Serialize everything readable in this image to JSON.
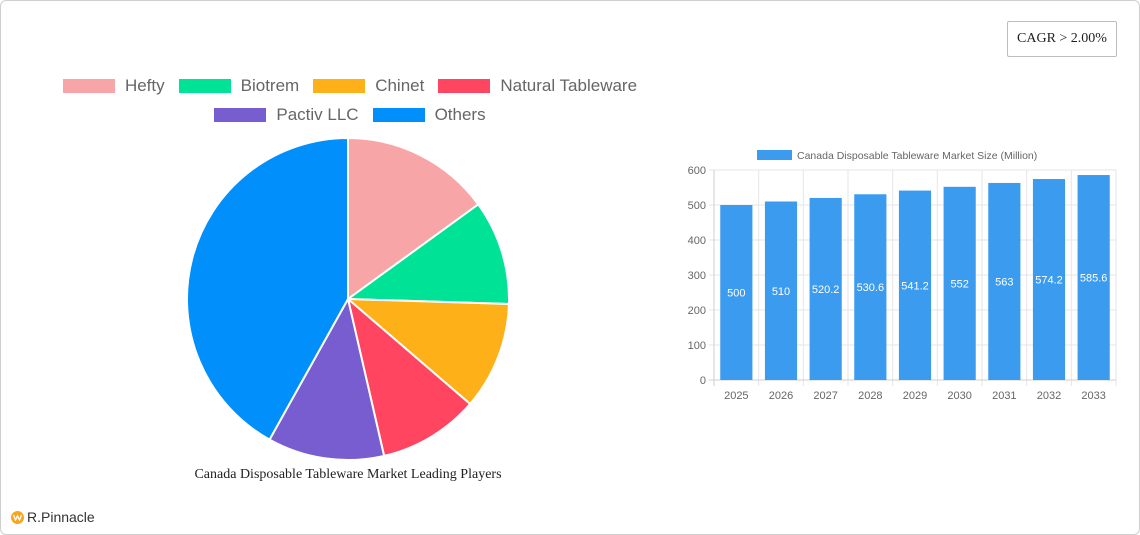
{
  "badge": {
    "cagr_label": "CAGR > 2.00%"
  },
  "brand": {
    "name": "R.Pinnacle",
    "icon": "pinnacle-logo-icon"
  },
  "pie": {
    "title": "Canada Disposable Tableware Market Leading Players",
    "legend": [
      {
        "label": "Hefty",
        "color": "#f8a5a7"
      },
      {
        "label": "Biotrem",
        "color": "#00e396"
      },
      {
        "label": "Chinet",
        "color": "#feb019"
      },
      {
        "label": "Natural Tableware",
        "color": "#ff4560"
      },
      {
        "label": "Pactiv LLC",
        "color": "#775dd0"
      },
      {
        "label": "Others",
        "color": "#008ffb"
      }
    ]
  },
  "bar": {
    "legend_label": "Canada Disposable Tableware Market Size (Million)",
    "color": "#3a9bef"
  },
  "chart_data": [
    {
      "type": "pie",
      "title": "Canada Disposable Tableware Market Leading Players",
      "categories": [
        "Hefty",
        "Biotrem",
        "Chinet",
        "Natural Tableware",
        "Pactiv LLC",
        "Others"
      ],
      "values": [
        15.0,
        10.5,
        10.8,
        10.1,
        11.7,
        41.9
      ],
      "colors": [
        "#f8a5a7",
        "#00e396",
        "#feb019",
        "#ff4560",
        "#775dd0",
        "#008ffb"
      ],
      "legend_position": "top",
      "start_angle": "12 o'clock, clockwise"
    },
    {
      "type": "bar",
      "title": "",
      "categories": [
        "2025",
        "2026",
        "2027",
        "2028",
        "2029",
        "2030",
        "2031",
        "2032",
        "2033"
      ],
      "series": [
        {
          "name": "Canada Disposable Tableware Market Size (Million)",
          "values": [
            500,
            510,
            520.2,
            530.6,
            541.2,
            552,
            563,
            574.2,
            585.6
          ]
        }
      ],
      "data_labels": [
        "500",
        "510",
        "520.2",
        "530.6",
        "541.2",
        "552",
        "563",
        "574.2",
        "585.6"
      ],
      "xlabel": "",
      "ylabel": "",
      "ylim": [
        0,
        600
      ],
      "yticks": [
        0,
        100,
        200,
        300,
        400,
        500,
        600
      ],
      "grid": true,
      "legend_position": "top"
    }
  ]
}
